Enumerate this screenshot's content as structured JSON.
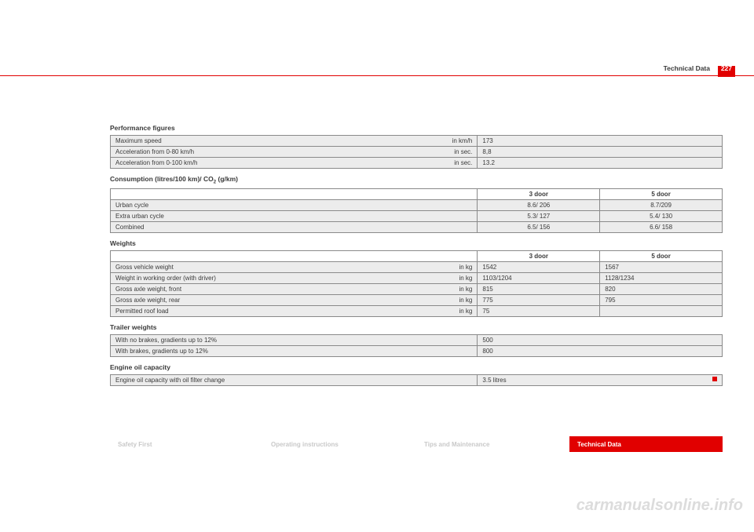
{
  "page": {
    "header": "Technical Data",
    "number": "227"
  },
  "performance": {
    "title": "Performance figures",
    "rows": [
      {
        "label": "Maximum speed",
        "unit": "in km/h",
        "value": "173"
      },
      {
        "label": "Acceleration from 0-80 km/h",
        "unit": "in sec.",
        "value": "8,8"
      },
      {
        "label": "Acceleration from 0-100 km/h",
        "unit": "in sec.",
        "value": "13.2"
      }
    ]
  },
  "consumption": {
    "title_pre": "Consumption (litres/100 km)/ CO",
    "title_sub": "2",
    "title_post": " (g/km)",
    "col1": "3 door",
    "col2": "5 door",
    "rows": [
      {
        "label": "Urban cycle",
        "v1": "8.6/ 206",
        "v2": "8.7/209"
      },
      {
        "label": "Extra urban cycle",
        "v1": "5.3/ 127",
        "v2": "5.4/ 130"
      },
      {
        "label": "Combined",
        "v1": "6.5/ 156",
        "v2": "6.6/ 158"
      }
    ]
  },
  "weights": {
    "title": "Weights",
    "col1": "3 door",
    "col2": "5 door",
    "rows": [
      {
        "label": "Gross vehicle weight",
        "unit": "in kg",
        "v1": "1542",
        "v2": "1567"
      },
      {
        "label": "Weight in working order (with driver)",
        "unit": "in kg",
        "v1": "1103/1204",
        "v2": "1128/1234"
      },
      {
        "label": "Gross axle weight, front",
        "unit": "in kg",
        "v1": "815",
        "v2": "820"
      },
      {
        "label": "Gross axle weight, rear",
        "unit": "in kg",
        "v1": "775",
        "v2": "795"
      },
      {
        "label": "Permitted roof load",
        "unit": "in kg",
        "v1": "75",
        "v2": ""
      }
    ]
  },
  "trailer": {
    "title": "Trailer weights",
    "rows": [
      {
        "label": "With no brakes, gradients up to 12%",
        "value": "500"
      },
      {
        "label": "With brakes, gradients up to 12%",
        "value": "800"
      }
    ]
  },
  "oil": {
    "title": "Engine oil capacity",
    "row": {
      "label": "Engine oil capacity with oil filter change",
      "value": "3.5 litres"
    }
  },
  "tabs": {
    "t1": "Safety First",
    "t2": "Operating instructions",
    "t3": "Tips and Maintenance",
    "t4": "Technical Data"
  },
  "watermark": "carmanualsonline.info"
}
